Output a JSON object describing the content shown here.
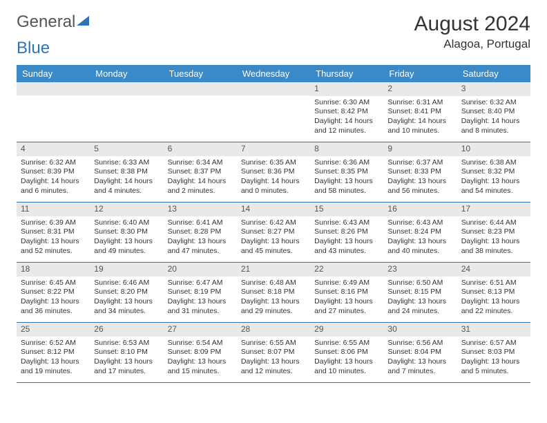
{
  "logo": {
    "part1": "General",
    "part2": "Blue"
  },
  "title": "August 2024",
  "location": "Alagoa, Portugal",
  "weekdays": [
    "Sunday",
    "Monday",
    "Tuesday",
    "Wednesday",
    "Thursday",
    "Friday",
    "Saturday"
  ],
  "colors": {
    "header_bg": "#3a8ac9",
    "header_text": "#ffffff",
    "border": "#2e74b5",
    "day_bg": "#e9e9e9",
    "logo_blue": "#2e74b5"
  },
  "grid": [
    [
      {
        "day": "",
        "lines": []
      },
      {
        "day": "",
        "lines": []
      },
      {
        "day": "",
        "lines": []
      },
      {
        "day": "",
        "lines": []
      },
      {
        "day": "1",
        "lines": [
          "Sunrise: 6:30 AM",
          "Sunset: 8:42 PM",
          "Daylight: 14 hours and 12 minutes."
        ]
      },
      {
        "day": "2",
        "lines": [
          "Sunrise: 6:31 AM",
          "Sunset: 8:41 PM",
          "Daylight: 14 hours and 10 minutes."
        ]
      },
      {
        "day": "3",
        "lines": [
          "Sunrise: 6:32 AM",
          "Sunset: 8:40 PM",
          "Daylight: 14 hours and 8 minutes."
        ]
      }
    ],
    [
      {
        "day": "4",
        "lines": [
          "Sunrise: 6:32 AM",
          "Sunset: 8:39 PM",
          "Daylight: 14 hours and 6 minutes."
        ]
      },
      {
        "day": "5",
        "lines": [
          "Sunrise: 6:33 AM",
          "Sunset: 8:38 PM",
          "Daylight: 14 hours and 4 minutes."
        ]
      },
      {
        "day": "6",
        "lines": [
          "Sunrise: 6:34 AM",
          "Sunset: 8:37 PM",
          "Daylight: 14 hours and 2 minutes."
        ]
      },
      {
        "day": "7",
        "lines": [
          "Sunrise: 6:35 AM",
          "Sunset: 8:36 PM",
          "Daylight: 14 hours and 0 minutes."
        ]
      },
      {
        "day": "8",
        "lines": [
          "Sunrise: 6:36 AM",
          "Sunset: 8:35 PM",
          "Daylight: 13 hours and 58 minutes."
        ]
      },
      {
        "day": "9",
        "lines": [
          "Sunrise: 6:37 AM",
          "Sunset: 8:33 PM",
          "Daylight: 13 hours and 56 minutes."
        ]
      },
      {
        "day": "10",
        "lines": [
          "Sunrise: 6:38 AM",
          "Sunset: 8:32 PM",
          "Daylight: 13 hours and 54 minutes."
        ]
      }
    ],
    [
      {
        "day": "11",
        "lines": [
          "Sunrise: 6:39 AM",
          "Sunset: 8:31 PM",
          "Daylight: 13 hours and 52 minutes."
        ]
      },
      {
        "day": "12",
        "lines": [
          "Sunrise: 6:40 AM",
          "Sunset: 8:30 PM",
          "Daylight: 13 hours and 49 minutes."
        ]
      },
      {
        "day": "13",
        "lines": [
          "Sunrise: 6:41 AM",
          "Sunset: 8:28 PM",
          "Daylight: 13 hours and 47 minutes."
        ]
      },
      {
        "day": "14",
        "lines": [
          "Sunrise: 6:42 AM",
          "Sunset: 8:27 PM",
          "Daylight: 13 hours and 45 minutes."
        ]
      },
      {
        "day": "15",
        "lines": [
          "Sunrise: 6:43 AM",
          "Sunset: 8:26 PM",
          "Daylight: 13 hours and 43 minutes."
        ]
      },
      {
        "day": "16",
        "lines": [
          "Sunrise: 6:43 AM",
          "Sunset: 8:24 PM",
          "Daylight: 13 hours and 40 minutes."
        ]
      },
      {
        "day": "17",
        "lines": [
          "Sunrise: 6:44 AM",
          "Sunset: 8:23 PM",
          "Daylight: 13 hours and 38 minutes."
        ]
      }
    ],
    [
      {
        "day": "18",
        "lines": [
          "Sunrise: 6:45 AM",
          "Sunset: 8:22 PM",
          "Daylight: 13 hours and 36 minutes."
        ]
      },
      {
        "day": "19",
        "lines": [
          "Sunrise: 6:46 AM",
          "Sunset: 8:20 PM",
          "Daylight: 13 hours and 34 minutes."
        ]
      },
      {
        "day": "20",
        "lines": [
          "Sunrise: 6:47 AM",
          "Sunset: 8:19 PM",
          "Daylight: 13 hours and 31 minutes."
        ]
      },
      {
        "day": "21",
        "lines": [
          "Sunrise: 6:48 AM",
          "Sunset: 8:18 PM",
          "Daylight: 13 hours and 29 minutes."
        ]
      },
      {
        "day": "22",
        "lines": [
          "Sunrise: 6:49 AM",
          "Sunset: 8:16 PM",
          "Daylight: 13 hours and 27 minutes."
        ]
      },
      {
        "day": "23",
        "lines": [
          "Sunrise: 6:50 AM",
          "Sunset: 8:15 PM",
          "Daylight: 13 hours and 24 minutes."
        ]
      },
      {
        "day": "24",
        "lines": [
          "Sunrise: 6:51 AM",
          "Sunset: 8:13 PM",
          "Daylight: 13 hours and 22 minutes."
        ]
      }
    ],
    [
      {
        "day": "25",
        "lines": [
          "Sunrise: 6:52 AM",
          "Sunset: 8:12 PM",
          "Daylight: 13 hours and 19 minutes."
        ]
      },
      {
        "day": "26",
        "lines": [
          "Sunrise: 6:53 AM",
          "Sunset: 8:10 PM",
          "Daylight: 13 hours and 17 minutes."
        ]
      },
      {
        "day": "27",
        "lines": [
          "Sunrise: 6:54 AM",
          "Sunset: 8:09 PM",
          "Daylight: 13 hours and 15 minutes."
        ]
      },
      {
        "day": "28",
        "lines": [
          "Sunrise: 6:55 AM",
          "Sunset: 8:07 PM",
          "Daylight: 13 hours and 12 minutes."
        ]
      },
      {
        "day": "29",
        "lines": [
          "Sunrise: 6:55 AM",
          "Sunset: 8:06 PM",
          "Daylight: 13 hours and 10 minutes."
        ]
      },
      {
        "day": "30",
        "lines": [
          "Sunrise: 6:56 AM",
          "Sunset: 8:04 PM",
          "Daylight: 13 hours and 7 minutes."
        ]
      },
      {
        "day": "31",
        "lines": [
          "Sunrise: 6:57 AM",
          "Sunset: 8:03 PM",
          "Daylight: 13 hours and 5 minutes."
        ]
      }
    ]
  ]
}
